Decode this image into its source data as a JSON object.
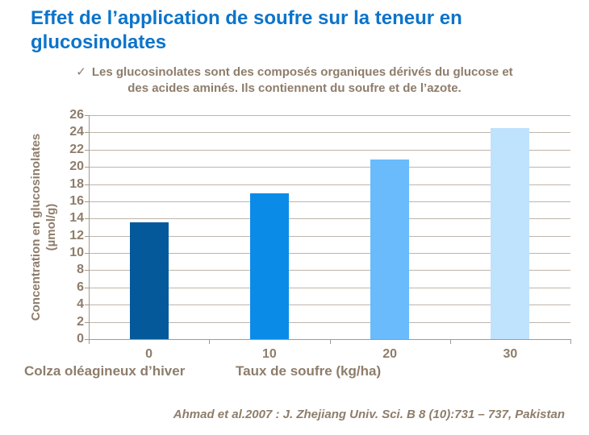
{
  "page": {
    "background": "#FFFFFF"
  },
  "title": {
    "text": "Effet de l’application de soufre sur la teneur en glucosinolates",
    "color": "#0B74CB"
  },
  "bullet": {
    "marker": "✓",
    "line1": "Les glucosinolates sont des composés organiques dérivés du glucose et",
    "line2": "des acides aminés. Ils contiennent du soufre et de l’azote.",
    "color": "#8E7D6B"
  },
  "chart_data": {
    "type": "bar",
    "title": "",
    "categories": [
      "0",
      "10",
      "20",
      "30"
    ],
    "values": [
      13.6,
      16.9,
      20.9,
      24.5
    ],
    "bar_colors": [
      "#04599B",
      "#0A8BE8",
      "#69BBFC",
      "#BFE2FD"
    ],
    "series_label": "Colza oléagineux d’hiver",
    "xlabel": "Taux de soufre (kg/ha)",
    "ylabel": "Concentration en glucosinolates (µmol/g)",
    "ylabel_lines": [
      "Concentration en glucosinolates",
      "(µmol/g)"
    ],
    "ylim": [
      0,
      26
    ],
    "ytick_step": 2,
    "grid": "horizontal",
    "gridline_color": "#BEB5AC",
    "axis_color": "#A39A8D",
    "tick_label_color": "#8E7D6B",
    "legend": "none"
  },
  "citation": {
    "text": "Ahmad et al.2007 : J. Zhejiang Univ. Sci. B 8 (10):731 – 737, Pakistan"
  }
}
